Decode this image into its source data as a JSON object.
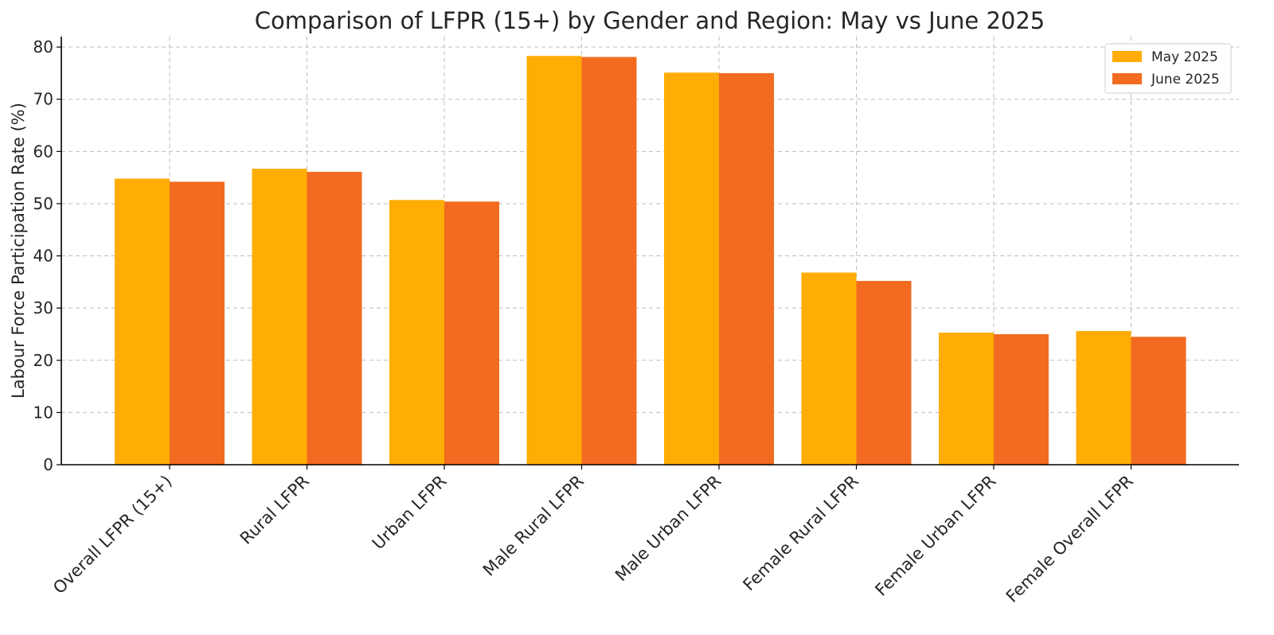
{
  "chart_data": {
    "type": "bar",
    "title": "Comparison of LFPR (15+) by Gender and Region: May vs June 2025",
    "xlabel": "",
    "ylabel": "Labour Force Participation Rate (%)",
    "categories": [
      "Overall LFPR (15+)",
      "Rural LFPR",
      "Urban LFPR",
      "Male Rural LFPR",
      "Male Urban LFPR",
      "Female Rural LFPR",
      "Female Urban LFPR",
      "Female Overall LFPR"
    ],
    "series": [
      {
        "name": "May 2025",
        "color": "#FFAD04",
        "values": [
          54.8,
          56.7,
          50.7,
          78.3,
          75.1,
          36.8,
          25.3,
          25.6
        ]
      },
      {
        "name": "June 2025",
        "color": "#F26B21",
        "values": [
          54.2,
          56.1,
          50.4,
          78.1,
          75.0,
          35.2,
          25.0,
          24.5
        ]
      }
    ],
    "ylim": [
      0,
      82
    ],
    "yticks": [
      0,
      10,
      20,
      30,
      40,
      50,
      60,
      70,
      80
    ],
    "grid": true,
    "legend_position": "top-right"
  }
}
